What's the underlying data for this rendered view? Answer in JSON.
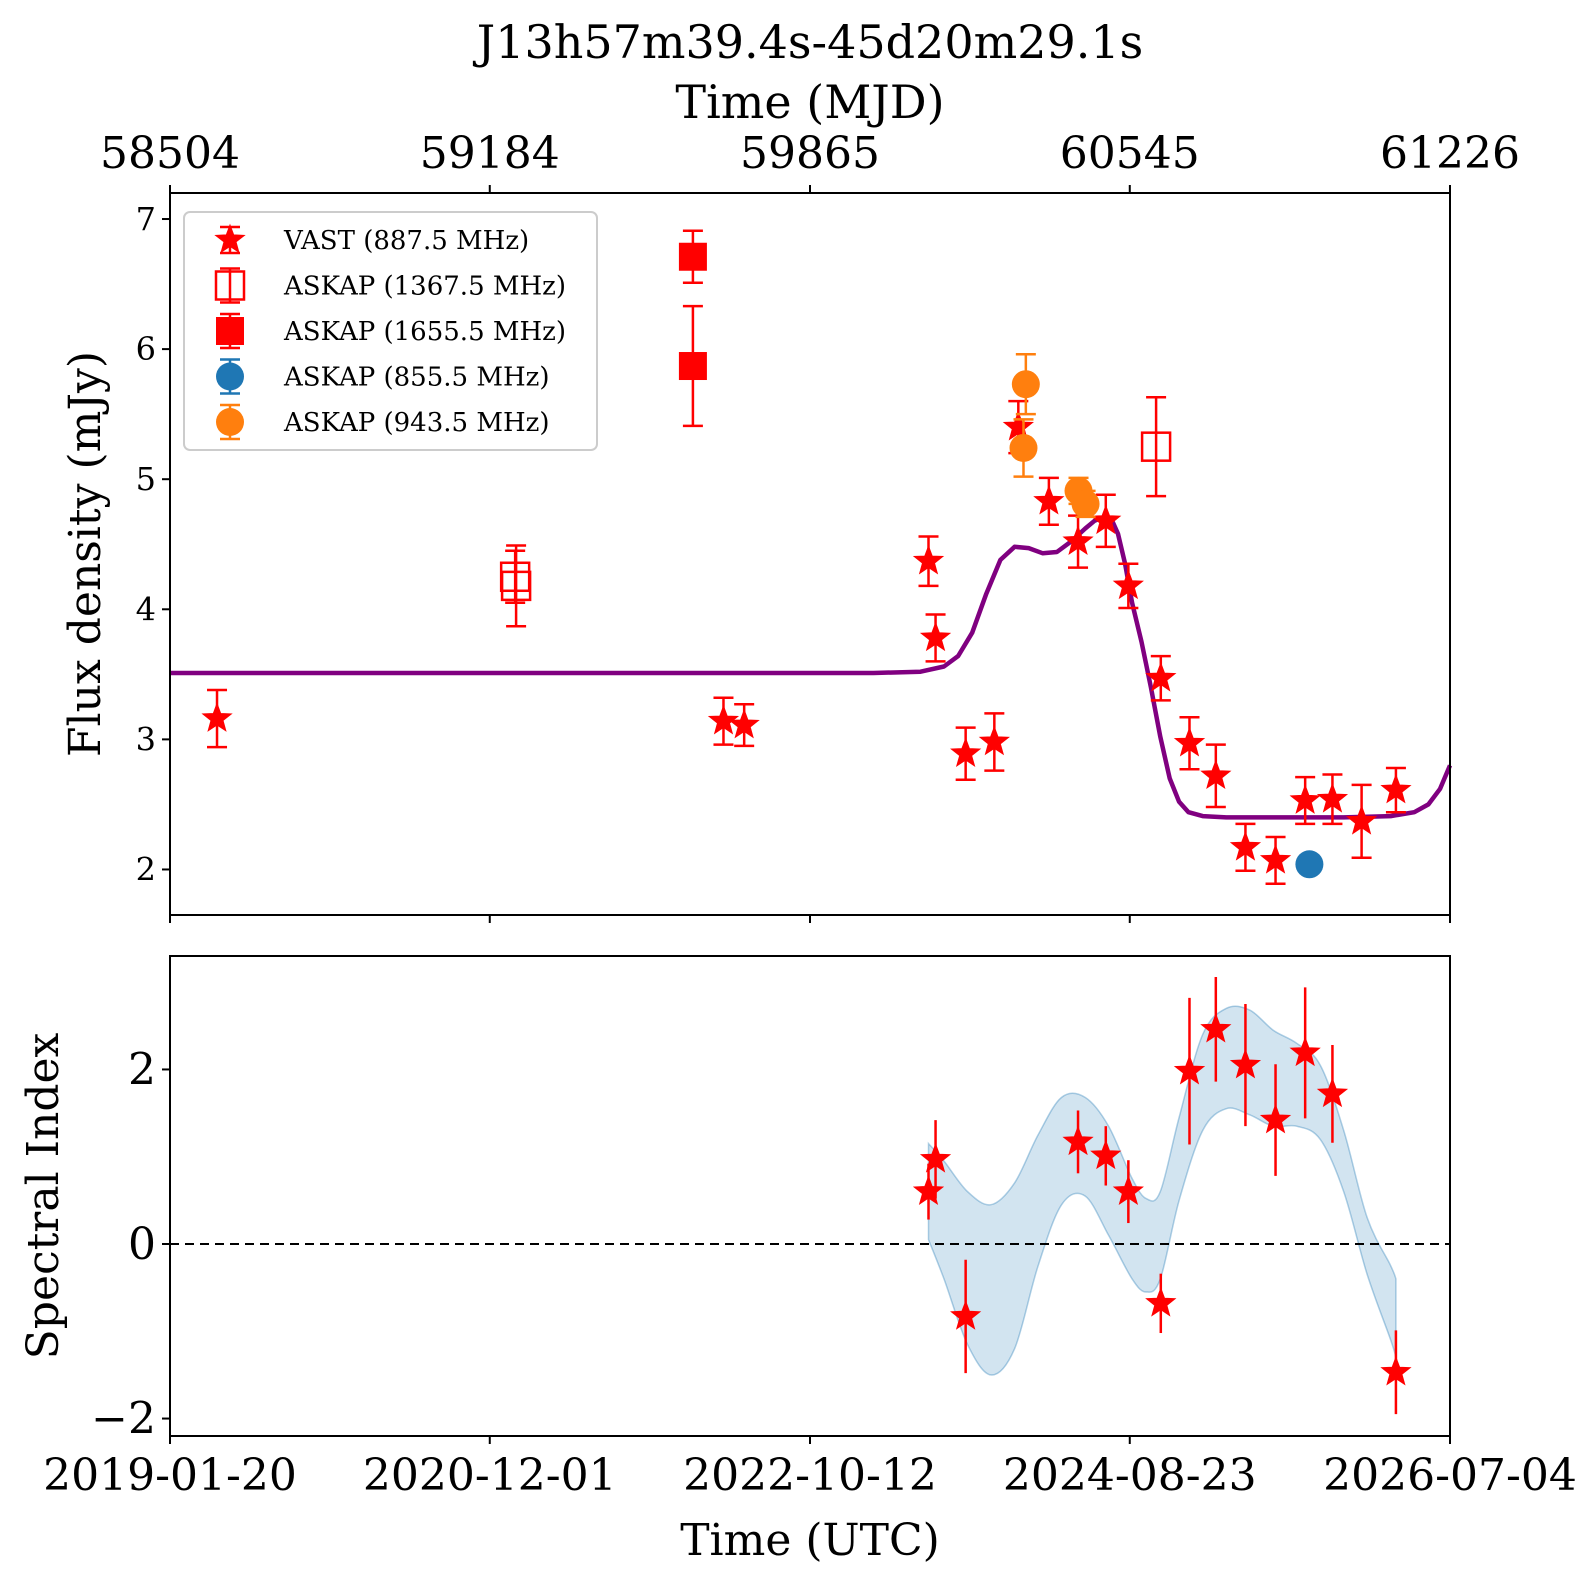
{
  "chart_data": [
    {
      "type": "scatter",
      "panel": "top",
      "title": "J13h57m39.4s-45d20m29.1s",
      "xlabel_top": "Time (MJD)",
      "ylabel": "Flux density (mJy)",
      "xlim": [
        58504,
        61226
      ],
      "ylim": [
        1.65,
        7.2
      ],
      "xticks_top": [
        "58504",
        "59184",
        "59865",
        "60545",
        "61226"
      ],
      "xtick_values_top": [
        58504,
        59184,
        59865,
        60545,
        61226
      ],
      "yticks": [
        2,
        3,
        4,
        5,
        6,
        7
      ],
      "grid": false,
      "legend_position": "top-left",
      "series": [
        {
          "name": "VAST (887.5 MHz)",
          "marker": "star",
          "color": "#ff0000",
          "points": [
            {
              "x": 58604,
              "y": 3.16,
              "err": 0.22
            },
            {
              "x": 59681,
              "y": 3.14,
              "err": 0.18
            },
            {
              "x": 59725,
              "y": 3.11,
              "err": 0.16
            },
            {
              "x": 60117,
              "y": 4.37,
              "err": 0.19
            },
            {
              "x": 60132,
              "y": 3.78,
              "err": 0.18
            },
            {
              "x": 60196,
              "y": 2.89,
              "err": 0.2
            },
            {
              "x": 60257,
              "y": 2.98,
              "err": 0.22
            },
            {
              "x": 60308,
              "y": 5.4,
              "err": 0.2
            },
            {
              "x": 60373,
              "y": 4.83,
              "err": 0.18
            },
            {
              "x": 60435,
              "y": 4.52,
              "err": 0.2
            },
            {
              "x": 60494,
              "y": 4.68,
              "err": 0.2
            },
            {
              "x": 60542,
              "y": 4.18,
              "err": 0.17
            },
            {
              "x": 60611,
              "y": 3.47,
              "err": 0.17
            },
            {
              "x": 60672,
              "y": 2.97,
              "err": 0.2
            },
            {
              "x": 60728,
              "y": 2.72,
              "err": 0.24
            },
            {
              "x": 60791,
              "y": 2.17,
              "err": 0.18
            },
            {
              "x": 60855,
              "y": 2.07,
              "err": 0.18
            },
            {
              "x": 60918,
              "y": 2.53,
              "err": 0.18
            },
            {
              "x": 60976,
              "y": 2.54,
              "err": 0.19
            },
            {
              "x": 61038,
              "y": 2.37,
              "err": 0.28
            },
            {
              "x": 61111,
              "y": 2.61,
              "err": 0.17
            }
          ]
        },
        {
          "name": "ASKAP (1367.5 MHz)",
          "marker": "square-open",
          "color": "#ff0000",
          "points": [
            {
              "x": 59240,
              "y": 4.18,
              "err": 0.31
            },
            {
              "x": 59238,
              "y": 4.25,
              "err": 0.2
            },
            {
              "x": 60601,
              "y": 5.25,
              "err": 0.38
            }
          ]
        },
        {
          "name": "ASKAP (1655.5 MHz)",
          "marker": "square",
          "color": "#ff0000",
          "points": [
            {
              "x": 59616,
              "y": 6.71,
              "err": 0.2
            },
            {
              "x": 59616,
              "y": 5.87,
              "err": 0.46
            }
          ]
        },
        {
          "name": "ASKAP (855.5 MHz)",
          "marker": "circle",
          "color": "#1f77b4",
          "points": [
            {
              "x": 60927,
              "y": 2.04,
              "err": 0.0
            }
          ]
        },
        {
          "name": "ASKAP (943.5 MHz)",
          "marker": "circle",
          "color": "#ff7f0e",
          "points": [
            {
              "x": 60324,
              "y": 5.73,
              "err": 0.23
            },
            {
              "x": 60319,
              "y": 5.24,
              "err": 0.22
            },
            {
              "x": 60436,
              "y": 4.91,
              "err": 0.1
            },
            {
              "x": 60451,
              "y": 4.81,
              "err": 0.1
            }
          ]
        }
      ],
      "model_curve": {
        "color": "#800080",
        "x": [
          58504,
          60000,
          60100,
          60150,
          60180,
          60210,
          60240,
          60270,
          60300,
          60330,
          60360,
          60390,
          60420,
          60450,
          60470,
          60490,
          60505,
          60520,
          60535,
          60550,
          60570,
          60590,
          60610,
          60630,
          60650,
          60670,
          60700,
          60750,
          60900,
          61000,
          61100,
          61150,
          61180,
          61205,
          61226
        ],
        "y": [
          3.51,
          3.51,
          3.52,
          3.56,
          3.64,
          3.82,
          4.12,
          4.38,
          4.48,
          4.47,
          4.43,
          4.44,
          4.52,
          4.62,
          4.68,
          4.71,
          4.7,
          4.58,
          4.35,
          4.05,
          3.75,
          3.4,
          3.02,
          2.7,
          2.52,
          2.44,
          2.41,
          2.4,
          2.4,
          2.4,
          2.41,
          2.44,
          2.5,
          2.62,
          2.8
        ]
      }
    },
    {
      "type": "scatter",
      "panel": "bottom",
      "xlabel": "Time (UTC)",
      "ylabel": "Spectral Index",
      "xlim": [
        58504,
        61226
      ],
      "ylim": [
        -2.2,
        3.3
      ],
      "xticks": [
        "2019-01-20",
        "2020-12-01",
        "2022-10-12",
        "2024-08-23",
        "2026-07-04"
      ],
      "xtick_values": [
        58504,
        59184,
        59865,
        60545,
        61226
      ],
      "yticks": [
        -2,
        0,
        2
      ],
      "reference_line": 0,
      "grid": false,
      "series": [
        {
          "marker": "star",
          "color": "#ff0000",
          "points": [
            {
              "x": 60117,
              "y": 0.6,
              "err": 0.32
            },
            {
              "x": 60132,
              "y": 0.97,
              "err": 0.45
            },
            {
              "x": 60196,
              "y": -0.83,
              "err": 0.65
            },
            {
              "x": 60435,
              "y": 1.17,
              "err": 0.36
            },
            {
              "x": 60494,
              "y": 1.01,
              "err": 0.34
            },
            {
              "x": 60542,
              "y": 0.6,
              "err": 0.36
            },
            {
              "x": 60611,
              "y": -0.68,
              "err": 0.34
            },
            {
              "x": 60672,
              "y": 1.98,
              "err": 0.84
            },
            {
              "x": 60728,
              "y": 2.46,
              "err": 0.6
            },
            {
              "x": 60791,
              "y": 2.05,
              "err": 0.7
            },
            {
              "x": 60855,
              "y": 1.42,
              "err": 0.64
            },
            {
              "x": 60918,
              "y": 2.19,
              "err": 0.75
            },
            {
              "x": 60976,
              "y": 1.72,
              "err": 0.56
            },
            {
              "x": 61111,
              "y": -1.47,
              "err": 0.48
            }
          ]
        }
      ],
      "band": {
        "color": "#1f77b4",
        "opacity": 0.2,
        "x": [
          60117,
          60150,
          60200,
          60250,
          60300,
          60350,
          60400,
          60450,
          60500,
          60550,
          60580,
          60610,
          60650,
          60700,
          60750,
          60800,
          60850,
          60900,
          60950,
          61000,
          61050,
          61100,
          61111
        ],
        "upper": [
          1.15,
          0.95,
          0.6,
          0.45,
          0.7,
          1.25,
          1.68,
          1.68,
          1.35,
          0.75,
          0.52,
          0.6,
          1.45,
          2.4,
          2.7,
          2.68,
          2.45,
          2.3,
          2.05,
          1.3,
          0.3,
          -0.25,
          -0.4
        ],
        "lower": [
          0.05,
          -0.4,
          -1.15,
          -1.5,
          -1.2,
          -0.25,
          0.45,
          0.55,
          0.1,
          -0.4,
          -0.55,
          -0.4,
          0.5,
          1.3,
          1.55,
          1.48,
          1.35,
          1.35,
          1.2,
          0.6,
          -0.35,
          -1.1,
          -1.3
        ]
      }
    }
  ]
}
